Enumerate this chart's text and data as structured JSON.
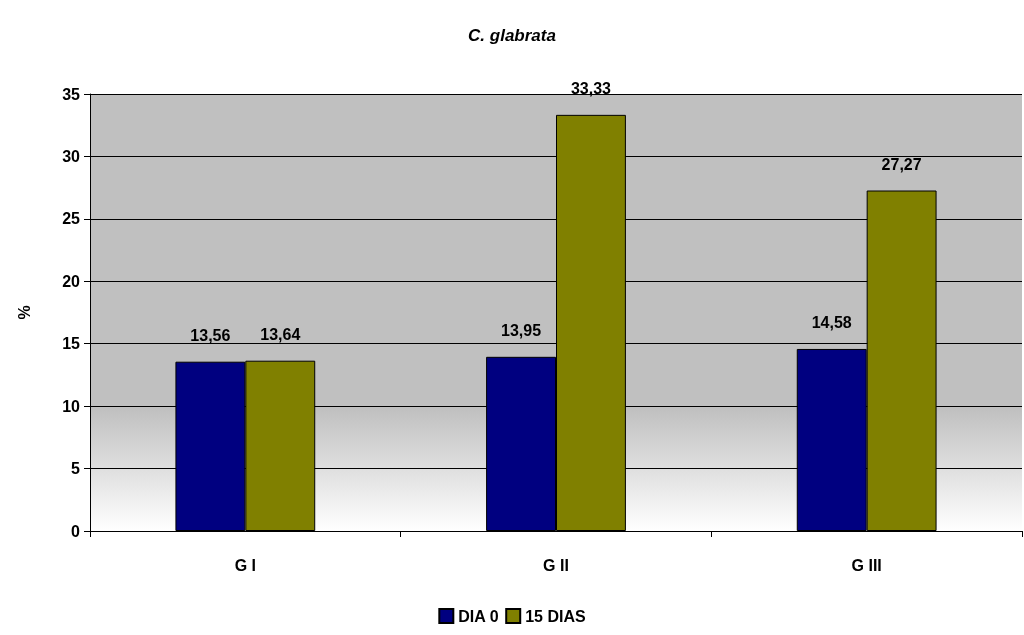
{
  "chart_data": {
    "type": "bar",
    "title": "C. glabrata",
    "ylabel": "%",
    "categories": [
      "G I",
      "G II",
      "G III"
    ],
    "series": [
      {
        "name": "DIA 0",
        "color": "#000080",
        "values": [
          13.56,
          13.95,
          14.58
        ],
        "value_labels": [
          "13,56",
          "13,95",
          "14,58"
        ]
      },
      {
        "name": "15 DIAS",
        "color": "#808000",
        "values": [
          13.64,
          33.33,
          27.27
        ],
        "value_labels": [
          "13,64",
          "33,33",
          "27,27"
        ]
      }
    ],
    "ylim": [
      0,
      35
    ],
    "yticks": [
      0,
      5,
      10,
      15,
      20,
      25,
      30,
      35
    ],
    "grid": "y",
    "legend": "bottom"
  }
}
